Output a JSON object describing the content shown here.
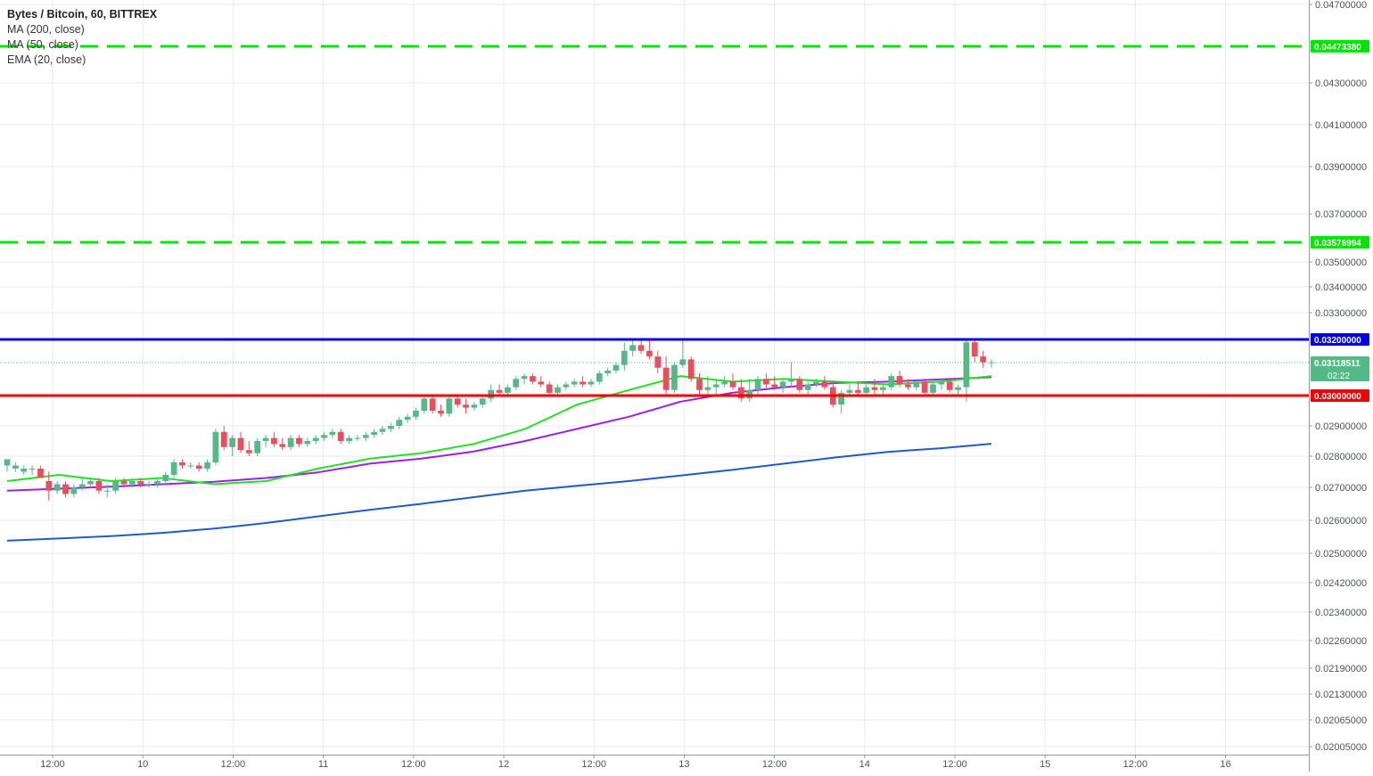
{
  "header": {
    "symbol_title": "Bytes / Bitcoin, 60, BITTREX",
    "indicators": [
      {
        "label": "MA (200, close)"
      },
      {
        "label": "MA (50, close)"
      },
      {
        "label": "EMA (20, close)"
      }
    ]
  },
  "chart_data": {
    "type": "candlestick",
    "y_axis_ticks": [
      {
        "value": 0.047,
        "label": "0.04700000"
      },
      {
        "value": 0.043,
        "label": "0.04300000"
      },
      {
        "value": 0.041,
        "label": "0.04100000"
      },
      {
        "value": 0.039,
        "label": "0.03900000"
      },
      {
        "value": 0.037,
        "label": "0.03700000"
      },
      {
        "value": 0.035,
        "label": "0.03500000"
      },
      {
        "value": 0.034,
        "label": "0.03400000"
      },
      {
        "value": 0.033,
        "label": "0.03300000"
      },
      {
        "value": 0.029,
        "label": "0.02900000"
      },
      {
        "value": 0.028,
        "label": "0.02800000"
      },
      {
        "value": 0.027,
        "label": "0.02700000"
      },
      {
        "value": 0.026,
        "label": "0.02600000"
      },
      {
        "value": 0.025,
        "label": "0.02500000"
      },
      {
        "value": 0.0242,
        "label": "0.02420000"
      },
      {
        "value": 0.0234,
        "label": "0.02340000"
      },
      {
        "value": 0.0226,
        "label": "0.02260000"
      },
      {
        "value": 0.0219,
        "label": "0.02190000"
      },
      {
        "value": 0.0213,
        "label": "0.02130000"
      },
      {
        "value": 0.02065,
        "label": "0.02065000"
      },
      {
        "value": 0.02005,
        "label": "0.02005000"
      }
    ],
    "x_axis_ticks": [
      "12:00",
      "10",
      "12:00",
      "11",
      "12:00",
      "12",
      "12:00",
      "13",
      "12:00",
      "14",
      "12:00",
      "15",
      "12:00",
      "16"
    ],
    "price_lines": [
      {
        "value": 0.0447338,
        "label": "0.04473380",
        "color": "#00e600",
        "style": "dashed"
      },
      {
        "value": 0.03576994,
        "label": "0.03576994",
        "color": "#00e600",
        "style": "dashed"
      },
      {
        "value": 0.032,
        "label": "0.03200000",
        "color": "#0000e0",
        "style": "solid"
      },
      {
        "value": 0.03,
        "label": "0.03000000",
        "color": "#f00000",
        "style": "solid"
      }
    ],
    "last_price": {
      "value": 0.03118511,
      "label": "0.03118511",
      "countdown": "02:22",
      "color": "#53b987"
    },
    "series": [
      {
        "color": "#1f5bc6",
        "values": [
          0.02538,
          0.02545,
          0.02552,
          0.02562,
          0.02575,
          0.02592,
          0.02612,
          0.02632,
          0.0265,
          0.0267,
          0.0269,
          0.02705,
          0.0272,
          0.02738,
          0.02756,
          0.02776,
          0.02796,
          0.02814,
          0.02826,
          0.02841
        ]
      },
      {
        "color": "#9b1fe6",
        "values": [
          0.0269,
          0.02696,
          0.02702,
          0.0271,
          0.02718,
          0.0273,
          0.02748,
          0.02776,
          0.02792,
          0.02815,
          0.0285,
          0.0289,
          0.0293,
          0.0298,
          0.0301,
          0.0303,
          0.03045,
          0.0305,
          0.03058,
          0.03066
        ]
      },
      {
        "color": "#22e022",
        "values": [
          0.0272,
          0.0274,
          0.0272,
          0.0273,
          0.0271,
          0.0272,
          0.0276,
          0.02792,
          0.0281,
          0.0284,
          0.0289,
          0.0297,
          0.0302,
          0.0307,
          0.0305,
          0.0306,
          0.0305,
          0.0304,
          0.0305,
          0.0307
        ]
      }
    ],
    "candles": [
      [
        0.0277,
        0.0279,
        0.0275,
        0.0279
      ],
      [
        0.0276,
        0.0278,
        0.0275,
        0.0277
      ],
      [
        0.0275,
        0.0277,
        0.0274,
        0.0276
      ],
      [
        0.0276,
        0.0277,
        0.0274,
        0.0276
      ],
      [
        0.0276,
        0.0277,
        0.0273,
        0.0273
      ],
      [
        0.0272,
        0.0275,
        0.0266,
        0.0269
      ],
      [
        0.0269,
        0.0272,
        0.0268,
        0.0271
      ],
      [
        0.0271,
        0.0272,
        0.0267,
        0.0268
      ],
      [
        0.0268,
        0.0271,
        0.0267,
        0.027
      ],
      [
        0.027,
        0.0273,
        0.0269,
        0.0271
      ],
      [
        0.0271,
        0.0273,
        0.027,
        0.0272
      ],
      [
        0.0272,
        0.0273,
        0.0268,
        0.0269
      ],
      [
        0.0269,
        0.0271,
        0.0267,
        0.0269
      ],
      [
        0.0269,
        0.0273,
        0.0268,
        0.0272
      ],
      [
        0.0272,
        0.0273,
        0.027,
        0.0271
      ],
      [
        0.0271,
        0.0273,
        0.027,
        0.0272
      ],
      [
        0.0272,
        0.0273,
        0.027,
        0.0271
      ],
      [
        0.0271,
        0.0272,
        0.027,
        0.0271
      ],
      [
        0.0271,
        0.0273,
        0.027,
        0.0272
      ],
      [
        0.0272,
        0.0275,
        0.0271,
        0.0274
      ],
      [
        0.0274,
        0.0279,
        0.0273,
        0.0278
      ],
      [
        0.0278,
        0.0279,
        0.0276,
        0.0277
      ],
      [
        0.0277,
        0.0278,
        0.0276,
        0.0277
      ],
      [
        0.0277,
        0.0278,
        0.0275,
        0.0276
      ],
      [
        0.0276,
        0.0279,
        0.0275,
        0.0278
      ],
      [
        0.0278,
        0.0289,
        0.0277,
        0.0288
      ],
      [
        0.0288,
        0.029,
        0.0282,
        0.0283
      ],
      [
        0.0283,
        0.0287,
        0.028,
        0.0286
      ],
      [
        0.0286,
        0.0288,
        0.0281,
        0.0282
      ],
      [
        0.0282,
        0.0285,
        0.028,
        0.0281
      ],
      [
        0.0281,
        0.0286,
        0.028,
        0.0285
      ],
      [
        0.0285,
        0.0287,
        0.0283,
        0.0286
      ],
      [
        0.0286,
        0.0288,
        0.0283,
        0.0284
      ],
      [
        0.0284,
        0.0286,
        0.0282,
        0.0283
      ],
      [
        0.0283,
        0.0287,
        0.0282,
        0.0286
      ],
      [
        0.0286,
        0.0287,
        0.0283,
        0.0284
      ],
      [
        0.0284,
        0.0286,
        0.0283,
        0.0285
      ],
      [
        0.0285,
        0.0287,
        0.0284,
        0.0286
      ],
      [
        0.0286,
        0.0288,
        0.0285,
        0.0287
      ],
      [
        0.0287,
        0.0289,
        0.0286,
        0.0288
      ],
      [
        0.0288,
        0.0289,
        0.0284,
        0.0285
      ],
      [
        0.0285,
        0.0287,
        0.0284,
        0.0286
      ],
      [
        0.0286,
        0.0287,
        0.0285,
        0.0286
      ],
      [
        0.0286,
        0.0288,
        0.0285,
        0.0287
      ],
      [
        0.0287,
        0.0289,
        0.0286,
        0.0288
      ],
      [
        0.0288,
        0.029,
        0.0287,
        0.0289
      ],
      [
        0.0289,
        0.0291,
        0.0288,
        0.029
      ],
      [
        0.029,
        0.0293,
        0.0289,
        0.0292
      ],
      [
        0.0292,
        0.0294,
        0.0291,
        0.0293
      ],
      [
        0.0293,
        0.0296,
        0.0292,
        0.0295
      ],
      [
        0.0295,
        0.03,
        0.0294,
        0.0299
      ],
      [
        0.0299,
        0.03,
        0.0294,
        0.0295
      ],
      [
        0.0295,
        0.0297,
        0.0293,
        0.0294
      ],
      [
        0.0294,
        0.03,
        0.0293,
        0.0299
      ],
      [
        0.0299,
        0.03,
        0.0296,
        0.0297
      ],
      [
        0.0297,
        0.0299,
        0.0294,
        0.0296
      ],
      [
        0.0296,
        0.0298,
        0.0295,
        0.0297
      ],
      [
        0.0297,
        0.03,
        0.0296,
        0.0299
      ],
      [
        0.0299,
        0.0304,
        0.0298,
        0.0302
      ],
      [
        0.0302,
        0.0304,
        0.03,
        0.0301
      ],
      [
        0.0301,
        0.0304,
        0.03,
        0.0303
      ],
      [
        0.0303,
        0.0307,
        0.0302,
        0.0306
      ],
      [
        0.0306,
        0.0308,
        0.0304,
        0.0307
      ],
      [
        0.0307,
        0.0308,
        0.0304,
        0.0305
      ],
      [
        0.0305,
        0.0307,
        0.0303,
        0.0304
      ],
      [
        0.0304,
        0.0305,
        0.03,
        0.0301
      ],
      [
        0.0301,
        0.0304,
        0.03,
        0.0303
      ],
      [
        0.0303,
        0.0305,
        0.0302,
        0.0304
      ],
      [
        0.0304,
        0.0306,
        0.0303,
        0.0305
      ],
      [
        0.0305,
        0.0307,
        0.0303,
        0.0304
      ],
      [
        0.0304,
        0.0306,
        0.0303,
        0.0305
      ],
      [
        0.0305,
        0.0309,
        0.0304,
        0.0308
      ],
      [
        0.0308,
        0.031,
        0.0307,
        0.0309
      ],
      [
        0.0309,
        0.0312,
        0.0308,
        0.0311
      ],
      [
        0.0311,
        0.0319,
        0.0309,
        0.0316
      ],
      [
        0.0316,
        0.032,
        0.0314,
        0.0318
      ],
      [
        0.0318,
        0.032,
        0.0315,
        0.0316
      ],
      [
        0.0316,
        0.032,
        0.0313,
        0.0314
      ],
      [
        0.0314,
        0.0316,
        0.0308,
        0.031
      ],
      [
        0.031,
        0.0314,
        0.03,
        0.0302
      ],
      [
        0.0302,
        0.0312,
        0.0301,
        0.0311
      ],
      [
        0.0311,
        0.032,
        0.031,
        0.0313
      ],
      [
        0.0313,
        0.0314,
        0.0305,
        0.0306
      ],
      [
        0.0306,
        0.0308,
        0.03,
        0.0302
      ],
      [
        0.0302,
        0.0307,
        0.0299,
        0.0303
      ],
      [
        0.0303,
        0.0306,
        0.03,
        0.0304
      ],
      [
        0.0304,
        0.0307,
        0.0303,
        0.0305
      ],
      [
        0.0305,
        0.0308,
        0.0302,
        0.0303
      ],
      [
        0.0303,
        0.0306,
        0.0298,
        0.0299
      ],
      [
        0.0299,
        0.0306,
        0.0298,
        0.0302
      ],
      [
        0.0302,
        0.0307,
        0.03,
        0.0306
      ],
      [
        0.0306,
        0.0308,
        0.0302,
        0.0304
      ],
      [
        0.0304,
        0.0307,
        0.0302,
        0.0303
      ],
      [
        0.0303,
        0.0306,
        0.0301,
        0.0305
      ],
      [
        0.0305,
        0.0312,
        0.0303,
        0.0306
      ],
      [
        0.0306,
        0.0307,
        0.0301,
        0.0302
      ],
      [
        0.0302,
        0.0305,
        0.03,
        0.0304
      ],
      [
        0.0304,
        0.0306,
        0.0303,
        0.0305
      ],
      [
        0.0305,
        0.0307,
        0.0302,
        0.0303
      ],
      [
        0.0303,
        0.0305,
        0.0296,
        0.0297
      ],
      [
        0.0297,
        0.0302,
        0.0294,
        0.0301
      ],
      [
        0.0301,
        0.0304,
        0.03,
        0.0302
      ],
      [
        0.0302,
        0.0305,
        0.03,
        0.0301
      ],
      [
        0.0301,
        0.0304,
        0.03,
        0.0303
      ],
      [
        0.0303,
        0.0306,
        0.03,
        0.0302
      ],
      [
        0.0302,
        0.0304,
        0.03,
        0.0303
      ],
      [
        0.0303,
        0.0308,
        0.0302,
        0.0307
      ],
      [
        0.0307,
        0.0309,
        0.0303,
        0.0304
      ],
      [
        0.0304,
        0.0306,
        0.0302,
        0.0303
      ],
      [
        0.0303,
        0.0306,
        0.0302,
        0.0305
      ],
      [
        0.0305,
        0.0306,
        0.03,
        0.0301
      ],
      [
        0.0301,
        0.0305,
        0.03,
        0.0304
      ],
      [
        0.0304,
        0.0306,
        0.0302,
        0.0305
      ],
      [
        0.0305,
        0.0306,
        0.0301,
        0.0302
      ],
      [
        0.0302,
        0.0304,
        0.03,
        0.0303
      ],
      [
        0.0303,
        0.032,
        0.0298,
        0.0319
      ],
      [
        0.0319,
        0.032,
        0.0312,
        0.0314
      ],
      [
        0.0314,
        0.0316,
        0.031,
        0.0312
      ],
      [
        0.0312,
        0.0313,
        0.031,
        0.0312
      ]
    ],
    "colors": {
      "up": "#53b987",
      "down": "#eb4d5c",
      "grid": "#e7eaef",
      "axis_text": "#4c525e"
    }
  }
}
